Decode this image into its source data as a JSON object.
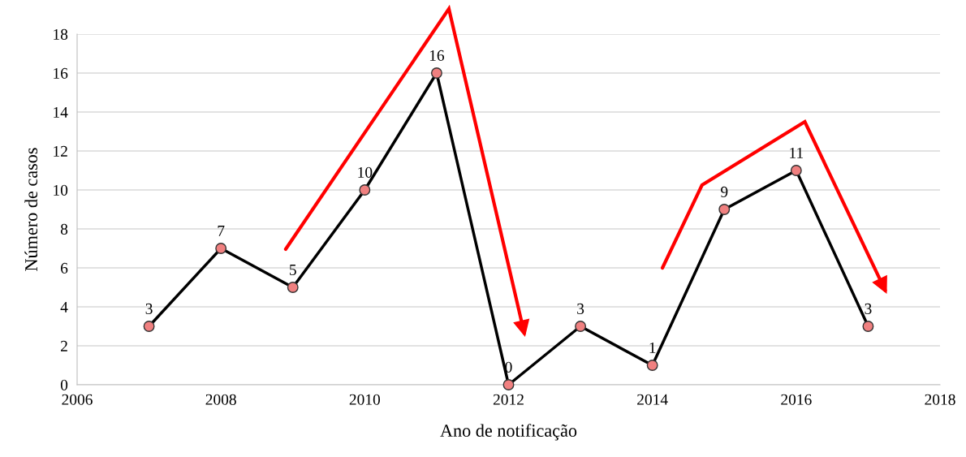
{
  "chart_data": {
    "type": "line",
    "xlabel": "Ano de notificação",
    "ylabel": "Número de casos",
    "x": [
      2007,
      2008,
      2009,
      2010,
      2011,
      2012,
      2013,
      2014,
      2015,
      2016,
      2017
    ],
    "series": [
      {
        "color": "#000000",
        "values": [
          3,
          7,
          5,
          10,
          16,
          0,
          3,
          1,
          9,
          11,
          3
        ]
      }
    ],
    "xlim": [
      2006,
      2018
    ],
    "xticks": [
      2006,
      2008,
      2010,
      2012,
      2014,
      2016,
      2018
    ],
    "ylim": [
      0,
      18
    ],
    "yticks": [
      0,
      2,
      4,
      6,
      8,
      10,
      12,
      14,
      16,
      18
    ],
    "grid": "y",
    "marker": "circle",
    "line_style": "solid",
    "data_labels": true
  }
}
